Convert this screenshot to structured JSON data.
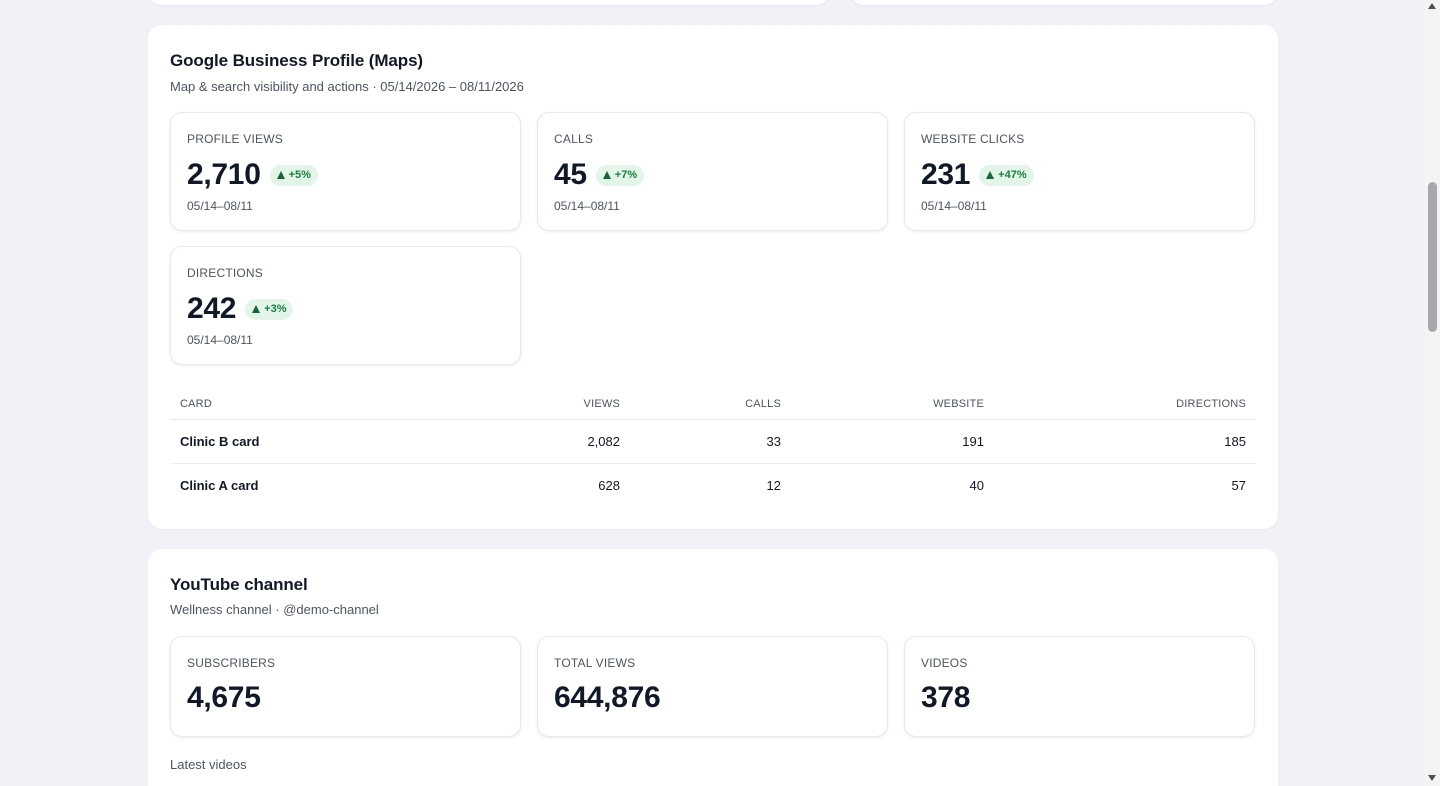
{
  "gbp": {
    "title": "Google Business Profile (Maps)",
    "subtitle": "Map & search visibility and actions · 05/14/2026 – 08/11/2026",
    "stats": [
      {
        "label": "PROFILE VIEWS",
        "value": "2,710",
        "delta": "+5%",
        "range": "05/14–08/11"
      },
      {
        "label": "CALLS",
        "value": "45",
        "delta": "+7%",
        "range": "05/14–08/11"
      },
      {
        "label": "WEBSITE CLICKS",
        "value": "231",
        "delta": "+47%",
        "range": "05/14–08/11"
      },
      {
        "label": "DIRECTIONS",
        "value": "242",
        "delta": "+3%",
        "range": "05/14–08/11"
      }
    ],
    "table": {
      "headers": [
        "CARD",
        "VIEWS",
        "CALLS",
        "WEBSITE",
        "DIRECTIONS"
      ],
      "rows": [
        [
          "Clinic B card",
          "2,082",
          "33",
          "191",
          "185"
        ],
        [
          "Clinic A card",
          "628",
          "12",
          "40",
          "57"
        ]
      ]
    },
    "delta_color": "#15803d",
    "delta_bg": "#e3f5e8"
  },
  "youtube": {
    "title": "YouTube channel",
    "subtitle": "Wellness channel · @demo-channel",
    "stats": [
      {
        "label": "SUBSCRIBERS",
        "value": "4,675"
      },
      {
        "label": "TOTAL VIEWS",
        "value": "644,876"
      },
      {
        "label": "VIDEOS",
        "value": "378"
      }
    ],
    "latest_label": "Latest videos"
  }
}
